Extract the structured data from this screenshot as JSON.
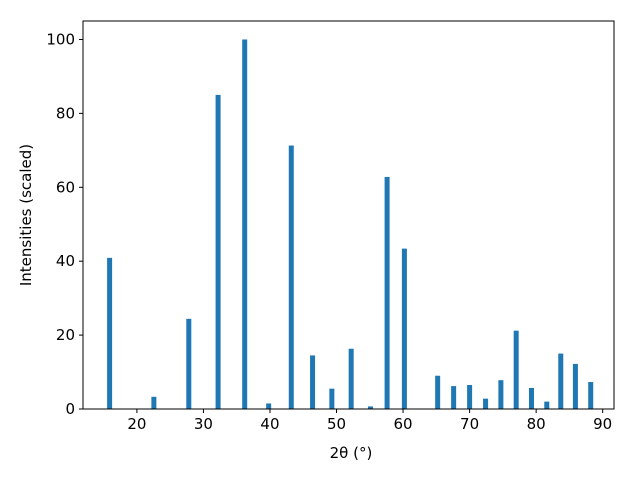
{
  "chart_data": {
    "type": "bar",
    "xlabel": "2θ (°)",
    "ylabel": "Intensities (scaled)",
    "x": [
      15.9,
      22.55,
      27.8,
      32.2,
      36.2,
      39.8,
      43.2,
      46.4,
      49.3,
      52.2,
      55.1,
      57.6,
      60.2,
      65.2,
      67.6,
      70.0,
      72.4,
      74.7,
      77.0,
      79.3,
      81.6,
      83.7,
      85.9,
      88.2
    ],
    "values": [
      40.9,
      3.3,
      24.4,
      85,
      100,
      1.5,
      71.3,
      14.5,
      5.5,
      16.3,
      0.7,
      62.8,
      43.4,
      9,
      6.2,
      6.5,
      2.8,
      7.8,
      21.2,
      5.7,
      2,
      15,
      12.2,
      7.3
    ],
    "color": "#1f77b4",
    "xlim": [
      11.9,
      91.7
    ],
    "xticks": [
      20,
      30,
      40,
      50,
      60,
      70,
      80,
      90
    ],
    "ylim": [
      0,
      105
    ],
    "yticks": [
      0,
      20,
      40,
      60,
      80,
      100
    ]
  }
}
